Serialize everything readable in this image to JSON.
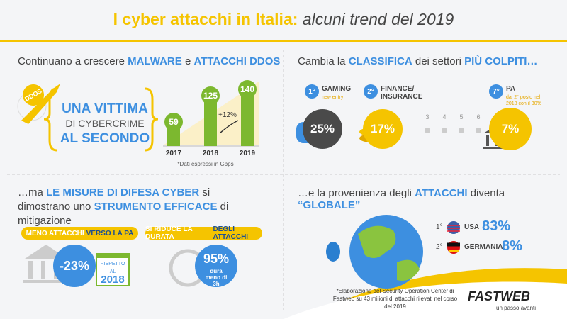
{
  "title": {
    "bold": "I cyber attacchi in Italia:",
    "italic": "alcuni trend del 2019"
  },
  "malware": {
    "heading": [
      {
        "t": "Continuano a crescere"
      },
      {
        "t": "MALWARE",
        "em": true
      },
      {
        "t": "e"
      },
      {
        "t": "ATTACCHI DDOS",
        "em": true
      }
    ],
    "badge": "DDOS",
    "victim": [
      "UNA VITTIMA",
      "DI CYBERCRIME",
      "AL SECONDO"
    ],
    "chart": {
      "years": [
        "2017",
        "2018",
        "2019"
      ],
      "values": [
        59,
        125,
        140
      ],
      "growth": "+12%",
      "note": "*Dati espressi in Gbps"
    }
  },
  "sectors": {
    "heading": [
      {
        "t": "Cambia la"
      },
      {
        "t": "CLASSIFICA",
        "em": true
      },
      {
        "t": "dei settori"
      },
      {
        "t": "PIÙ COLPITI…",
        "em": true
      }
    ],
    "items": [
      {
        "rank": "1°",
        "name": "GAMING",
        "note": "new entry",
        "value": "25%"
      },
      {
        "rank": "2°",
        "name": "FINANCE/ INSURANCE",
        "value": "17%"
      },
      {
        "rank": "7°",
        "name": "PA",
        "note": "dal 2° posto nel 2018 con il 30%",
        "value": "7%"
      }
    ],
    "middle_ranks": [
      "3",
      "4",
      "5",
      "6"
    ]
  },
  "defense": {
    "heading": [
      {
        "t": "…ma"
      },
      {
        "t": "LE MISURE DI DIFESA CYBER",
        "em": true
      },
      {
        "t": "si dimostrano uno"
      },
      {
        "t": "STRUMENTO EFFICACE",
        "em": true
      },
      {
        "t": "di mitigazione"
      }
    ],
    "items": [
      {
        "label": [
          {
            "t": "MENO ATTACCHI"
          },
          {
            "t": "VERSO LA PA",
            "em": true
          }
        ],
        "value": "-23%",
        "badge": [
          "RISPETTO AL",
          "2018"
        ]
      },
      {
        "label": [
          {
            "t": "SI RIDUCE LA DURATA"
          },
          {
            "t": "DEGLI ATTACCHI",
            "em": true
          }
        ],
        "value": "95%",
        "sub": "dura meno di 3h"
      }
    ]
  },
  "origin": {
    "heading": [
      {
        "t": "…e la provenienza degli"
      },
      {
        "t": "ATTACCHI",
        "em": true
      },
      {
        "t": "diventa"
      },
      {
        "t": "“GLOBALE”",
        "em": true
      }
    ],
    "countries": [
      {
        "rank": "1°",
        "name": "USA",
        "value": "83%"
      },
      {
        "rank": "2°",
        "name": "GERMANIA",
        "value": "8%"
      }
    ]
  },
  "footer": {
    "note": "*Elaborazione del Security Operation Center di Fastweb su 43 milioni di attacchi rilevati nel corso del 2019",
    "logo": "FASTWEB",
    "tagline": "un passo avanti"
  }
}
